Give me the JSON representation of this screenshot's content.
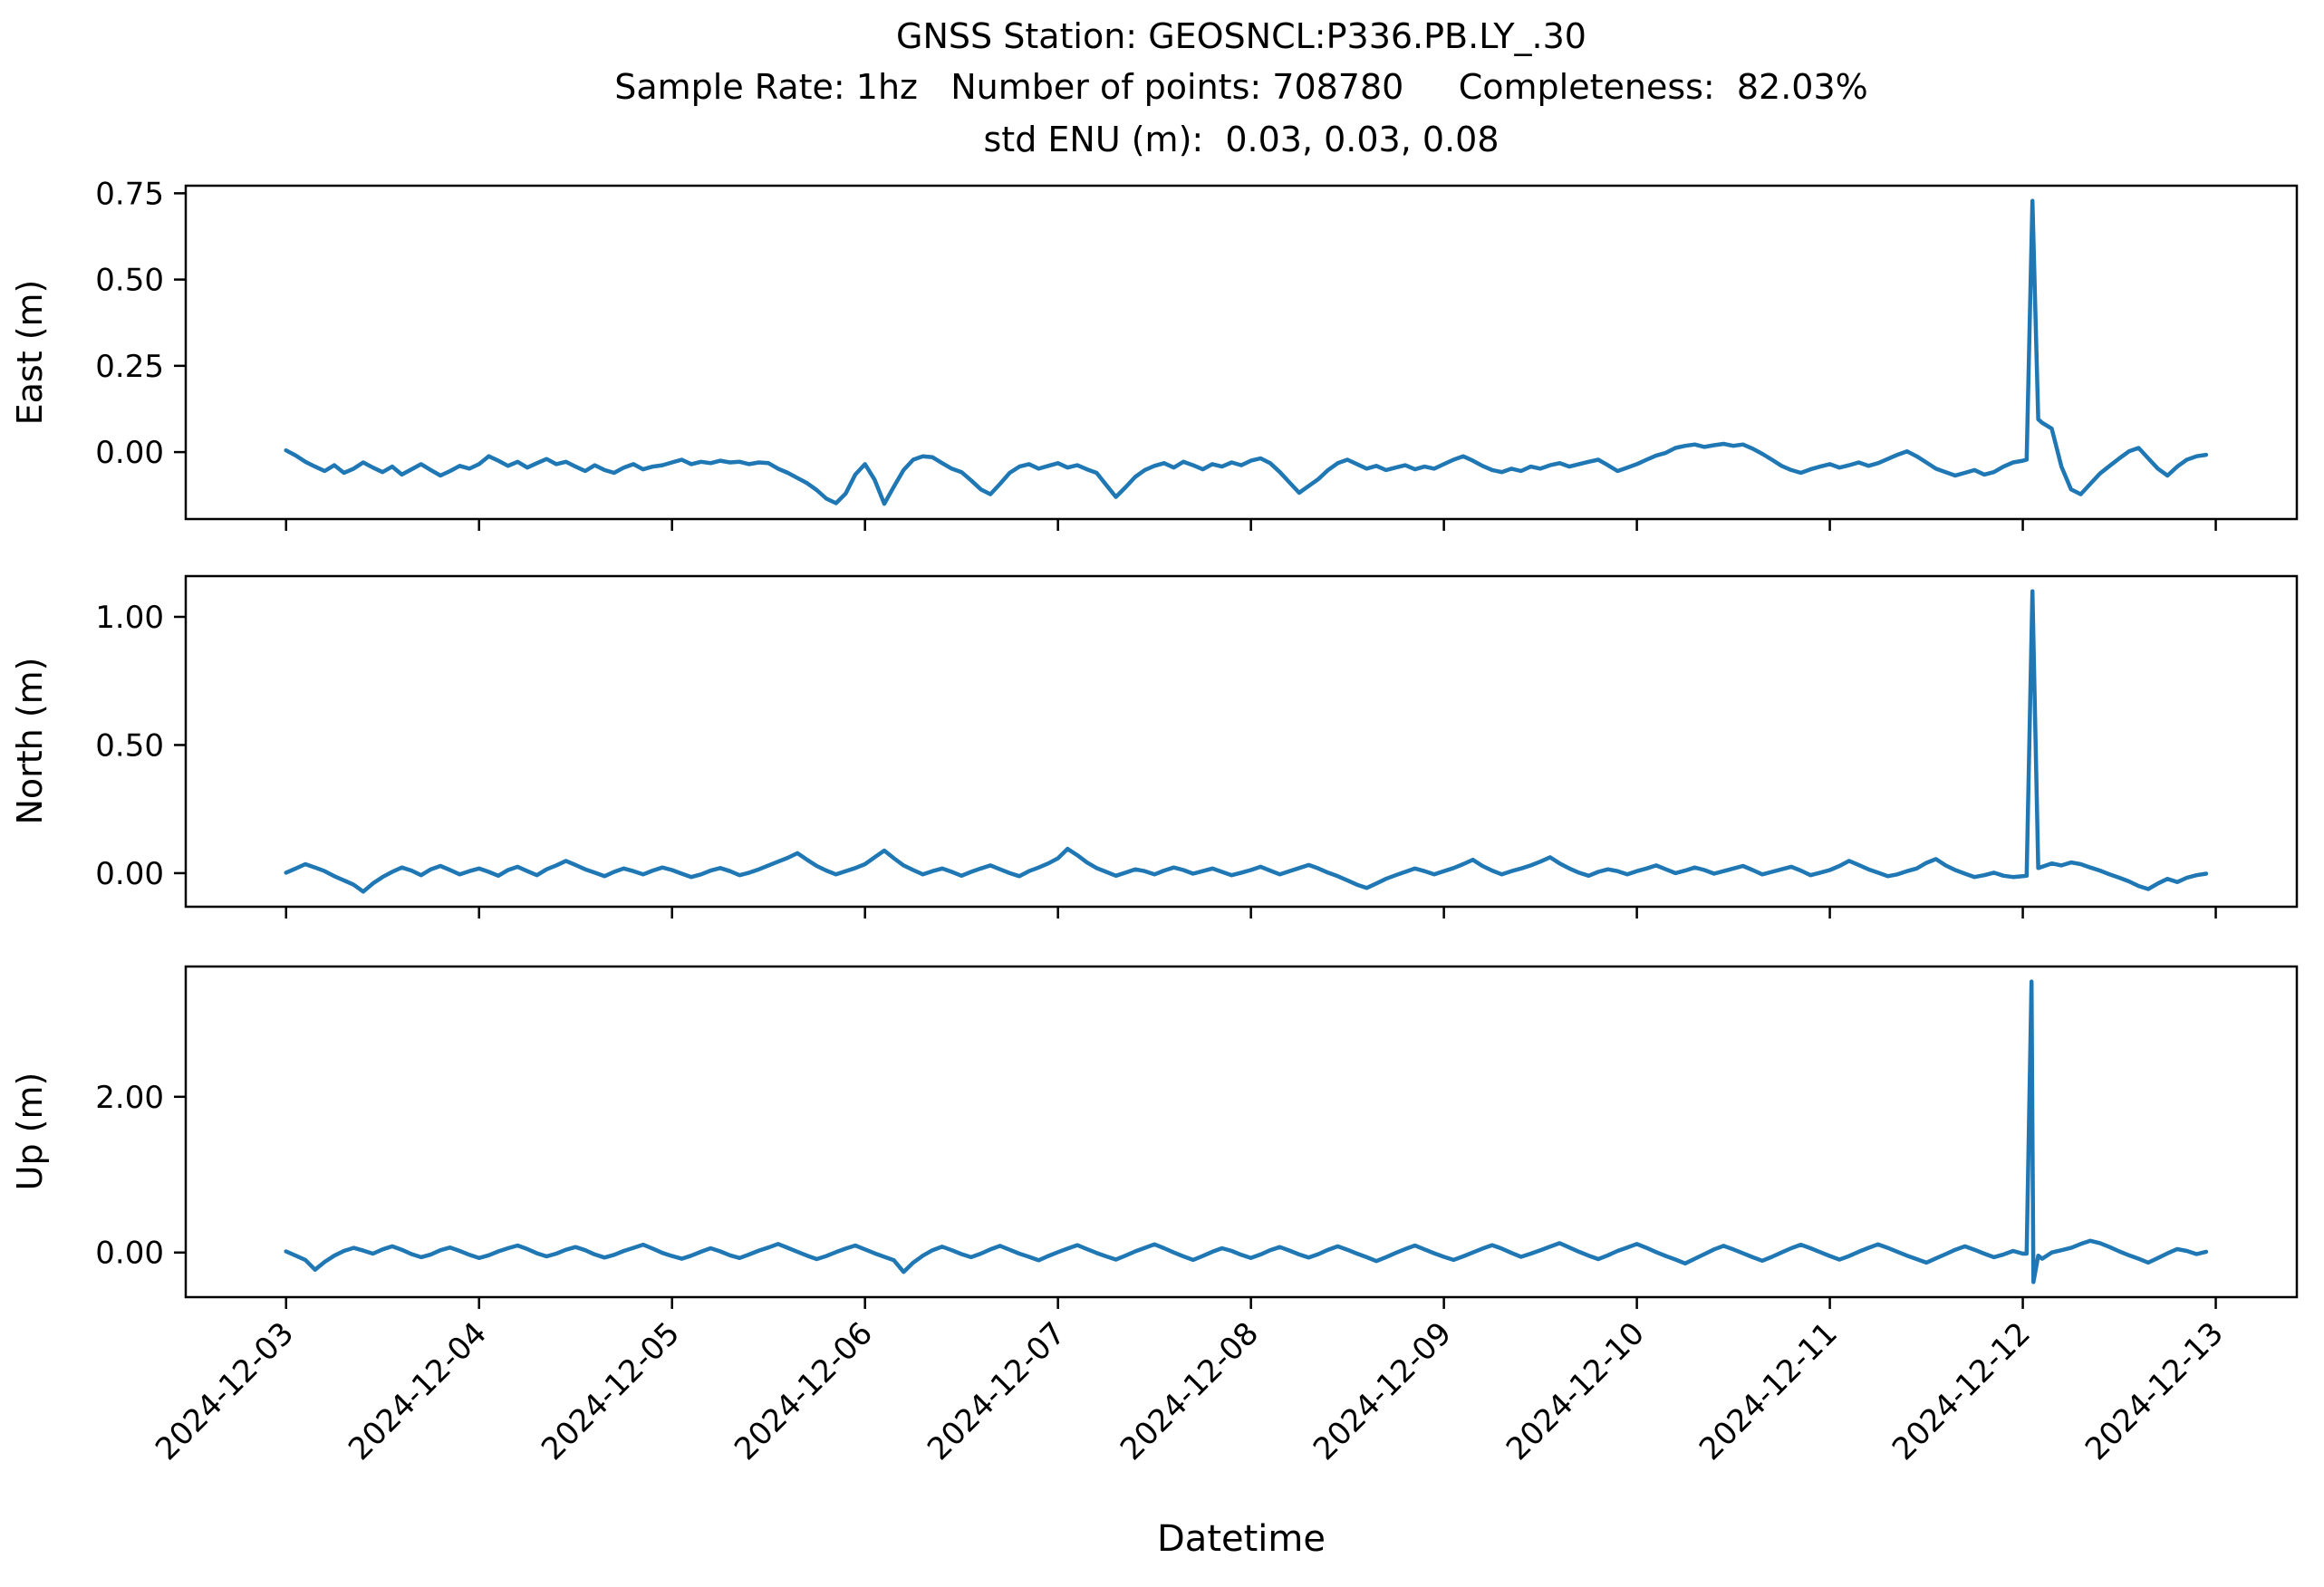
{
  "figure": {
    "title_lines": [
      "GNSS Station: GEOSNCL:P336.PB.LY_.30",
      "Sample Rate: 1hz   Number of points: 708780     Completeness:  82.03%",
      "std ENU (m):  0.03, 0.03, 0.08"
    ],
    "station": "GEOSNCL:P336.PB.LY_.30",
    "sample_rate": "1hz",
    "number_of_points": "708780",
    "completeness": "82.03%",
    "std_enu_m": [
      0.03,
      0.03,
      0.08
    ],
    "line_color": "#1f77b4",
    "spine_color": "#000000",
    "background_color": "#ffffff"
  },
  "chart_data": {
    "type": "line",
    "title": "GNSS Station: GEOSNCL:P336.PB.LY_.30",
    "subtitle": "Sample Rate: 1hz   Number of points: 708780     Completeness:  82.03%  |  std ENU (m): 0.03, 0.03, 0.08",
    "xlabel": "Datetime",
    "legend": "none",
    "grid": false,
    "x_axis": {
      "label": "Datetime",
      "tick_labels": [
        "2024-12-03",
        "2024-12-04",
        "2024-12-05",
        "2024-12-06",
        "2024-12-07",
        "2024-12-08",
        "2024-12-09",
        "2024-12-10",
        "2024-12-11",
        "2024-12-12",
        "2024-12-13"
      ],
      "tick_days": [
        0,
        1,
        2,
        3,
        4,
        5,
        6,
        7,
        8,
        9,
        10
      ],
      "xlim_days": [
        -0.52,
        10.42
      ],
      "x0_day": 0.0,
      "dx_day": 0.05
    },
    "subplots": [
      {
        "name": "East",
        "ylabel": "East (m)",
        "ytick_values": [
          0.0,
          0.25,
          0.5,
          0.75
        ],
        "ytick_labels": [
          "0.00",
          "0.25",
          "0.50",
          "0.75"
        ],
        "ylim": [
          -0.194,
          0.772
        ],
        "spike": {
          "day": 9.05,
          "peak": 0.73
        },
        "y": [
          0.005,
          -0.01,
          -0.028,
          -0.042,
          -0.055,
          -0.038,
          -0.06,
          -0.048,
          -0.03,
          -0.045,
          -0.058,
          -0.042,
          -0.065,
          -0.05,
          -0.035,
          -0.052,
          -0.068,
          -0.055,
          -0.04,
          -0.048,
          -0.035,
          -0.012,
          -0.025,
          -0.04,
          -0.028,
          -0.045,
          -0.032,
          -0.02,
          -0.035,
          -0.028,
          -0.042,
          -0.055,
          -0.038,
          -0.052,
          -0.06,
          -0.045,
          -0.035,
          -0.05,
          -0.042,
          -0.038,
          -0.03,
          -0.022,
          -0.035,
          -0.028,
          -0.032,
          -0.025,
          -0.03,
          -0.028,
          -0.035,
          -0.03,
          -0.032,
          -0.048,
          -0.06,
          -0.075,
          -0.09,
          -0.11,
          -0.135,
          -0.148,
          -0.12,
          -0.065,
          -0.035,
          -0.08,
          -0.15,
          -0.1,
          -0.052,
          -0.022,
          -0.012,
          -0.015,
          -0.032,
          -0.048,
          -0.058,
          -0.082,
          -0.108,
          -0.122,
          -0.092,
          -0.06,
          -0.042,
          -0.035,
          -0.048,
          -0.04,
          -0.032,
          -0.045,
          -0.038,
          -0.05,
          -0.06,
          -0.095,
          -0.13,
          -0.102,
          -0.072,
          -0.052,
          -0.04,
          -0.032,
          -0.045,
          -0.028,
          -0.038,
          -0.05,
          -0.035,
          -0.042,
          -0.03,
          -0.038,
          -0.025,
          -0.018,
          -0.032,
          -0.058,
          -0.088,
          -0.118,
          -0.098,
          -0.078,
          -0.052,
          -0.032,
          -0.022,
          -0.035,
          -0.048,
          -0.04,
          -0.052,
          -0.045,
          -0.038,
          -0.05,
          -0.042,
          -0.048,
          -0.035,
          -0.022,
          -0.012,
          -0.025,
          -0.04,
          -0.052,
          -0.058,
          -0.048,
          -0.055,
          -0.042,
          -0.048,
          -0.038,
          -0.032,
          -0.042,
          -0.035,
          -0.028,
          -0.022,
          -0.038,
          -0.055,
          -0.045,
          -0.035,
          -0.022,
          -0.01,
          -0.002,
          0.012,
          0.018,
          0.022,
          0.015,
          0.02,
          0.024,
          0.018,
          0.022,
          0.01,
          -0.005,
          -0.022,
          -0.04,
          -0.052,
          -0.06,
          -0.05,
          -0.042,
          -0.035,
          -0.045,
          -0.038,
          -0.03,
          -0.04,
          -0.032,
          -0.02,
          -0.008,
          0.002,
          -0.012,
          -0.03,
          -0.048,
          -0.058,
          -0.068,
          -0.06,
          -0.052,
          -0.065,
          -0.058,
          -0.042,
          -0.03,
          -0.025,
          0.728,
          0.085,
          0.068,
          -0.042,
          -0.108,
          -0.122,
          -0.092,
          -0.062,
          -0.04,
          -0.018,
          0.002,
          0.012,
          -0.018,
          -0.048,
          -0.068,
          -0.042,
          -0.022,
          -0.012,
          -0.008
        ],
        "extra_points": [
          [
            9.02,
            -0.022
          ],
          [
            9.08,
            0.095
          ]
        ]
      },
      {
        "name": "North",
        "ylabel": "North (m)",
        "ytick_values": [
          0.0,
          0.5,
          1.0
        ],
        "ytick_labels": [
          "0.00",
          "0.50",
          "1.00"
        ],
        "ylim": [
          -0.131,
          1.159
        ],
        "spike": {
          "day": 9.05,
          "peak": 1.1
        },
        "y": [
          0.002,
          0.018,
          0.035,
          0.022,
          0.008,
          -0.012,
          -0.028,
          -0.045,
          -0.072,
          -0.04,
          -0.015,
          0.005,
          0.022,
          0.01,
          -0.008,
          0.015,
          0.028,
          0.012,
          -0.005,
          0.008,
          0.018,
          0.005,
          -0.01,
          0.012,
          0.025,
          0.008,
          -0.008,
          0.015,
          0.03,
          0.048,
          0.032,
          0.015,
          0.002,
          -0.012,
          0.005,
          0.018,
          0.008,
          -0.005,
          0.01,
          0.022,
          0.012,
          -0.002,
          -0.015,
          -0.005,
          0.01,
          0.02,
          0.008,
          -0.008,
          0.002,
          0.015,
          0.03,
          0.045,
          0.06,
          0.078,
          0.052,
          0.028,
          0.01,
          -0.005,
          0.008,
          0.02,
          0.035,
          0.062,
          0.088,
          0.058,
          0.03,
          0.012,
          -0.005,
          0.008,
          0.018,
          0.005,
          -0.01,
          0.005,
          0.018,
          0.03,
          0.015,
          0.0,
          -0.012,
          0.008,
          0.022,
          0.038,
          0.058,
          0.095,
          0.07,
          0.042,
          0.02,
          0.005,
          -0.01,
          0.002,
          0.015,
          0.008,
          -0.005,
          0.01,
          0.022,
          0.012,
          -0.002,
          0.008,
          0.018,
          0.005,
          -0.008,
          0.002,
          0.012,
          0.025,
          0.01,
          -0.005,
          0.008,
          0.02,
          0.032,
          0.018,
          0.002,
          -0.012,
          -0.028,
          -0.045,
          -0.058,
          -0.04,
          -0.022,
          -0.008,
          0.005,
          0.018,
          0.008,
          -0.005,
          0.008,
          0.02,
          0.035,
          0.052,
          0.028,
          0.01,
          -0.005,
          0.008,
          0.018,
          0.03,
          0.045,
          0.062,
          0.038,
          0.018,
          0.002,
          -0.01,
          0.005,
          0.015,
          0.008,
          -0.005,
          0.008,
          0.018,
          0.03,
          0.015,
          0.0,
          0.01,
          0.022,
          0.012,
          -0.002,
          0.008,
          0.018,
          0.028,
          0.012,
          -0.005,
          0.005,
          0.015,
          0.025,
          0.01,
          -0.008,
          0.002,
          0.012,
          0.028,
          0.048,
          0.032,
          0.015,
          0.002,
          -0.012,
          -0.005,
          0.008,
          0.018,
          0.04,
          0.055,
          0.03,
          0.012,
          -0.002,
          -0.015,
          -0.008,
          0.002,
          -0.01,
          -0.015,
          -0.012,
          1.1,
          0.025,
          0.038,
          0.03,
          0.042,
          0.035,
          0.022,
          0.01,
          -0.005,
          -0.018,
          -0.032,
          -0.05,
          -0.062,
          -0.04,
          -0.022,
          -0.035,
          -0.018,
          -0.008,
          -0.002
        ],
        "extra_points": [
          [
            9.02,
            -0.01
          ],
          [
            9.08,
            0.02
          ]
        ]
      },
      {
        "name": "Up",
        "ylabel": "Up (m)",
        "ytick_values": [
          0.0,
          2.0
        ],
        "ytick_labels": [
          "0.00",
          "2.00"
        ],
        "ylim": [
          -0.573,
          3.673
        ],
        "spike": {
          "day": 9.05,
          "peak": 3.48,
          "trough": -0.38
        },
        "y": [
          0.015,
          -0.04,
          -0.095,
          -0.22,
          -0.12,
          -0.04,
          0.02,
          0.06,
          0.025,
          -0.015,
          0.04,
          0.08,
          0.035,
          -0.02,
          -0.06,
          -0.025,
          0.03,
          0.065,
          0.02,
          -0.03,
          -0.07,
          -0.035,
          0.015,
          0.055,
          0.09,
          0.045,
          -0.01,
          -0.05,
          -0.015,
          0.035,
          0.07,
          0.03,
          -0.025,
          -0.065,
          -0.03,
          0.02,
          0.06,
          0.1,
          0.05,
          -0.005,
          -0.045,
          -0.08,
          -0.04,
          0.01,
          0.055,
          0.015,
          -0.035,
          -0.07,
          -0.025,
          0.025,
          0.065,
          0.11,
          0.06,
          0.01,
          -0.04,
          -0.085,
          -0.045,
          0.005,
          0.05,
          0.09,
          0.04,
          -0.01,
          -0.055,
          -0.1,
          -0.25,
          -0.13,
          -0.04,
          0.03,
          0.075,
          0.03,
          -0.02,
          -0.06,
          -0.015,
          0.04,
          0.085,
          0.035,
          -0.015,
          -0.055,
          -0.1,
          -0.045,
          0.005,
          0.05,
          0.095,
          0.045,
          -0.005,
          -0.05,
          -0.09,
          -0.04,
          0.015,
          0.06,
          0.105,
          0.055,
          0.0,
          -0.05,
          -0.095,
          -0.045,
          0.01,
          0.055,
          0.02,
          -0.03,
          -0.07,
          -0.025,
          0.03,
          0.07,
          0.025,
          -0.025,
          -0.065,
          -0.02,
          0.035,
          0.08,
          0.035,
          -0.015,
          -0.06,
          -0.11,
          -0.06,
          -0.005,
          0.045,
          0.09,
          0.04,
          -0.01,
          -0.055,
          -0.095,
          -0.05,
          0.0,
          0.05,
          0.095,
          0.05,
          -0.005,
          -0.055,
          -0.015,
          0.03,
          0.075,
          0.12,
          0.065,
          0.01,
          -0.04,
          -0.085,
          -0.035,
          0.02,
          0.065,
          0.11,
          0.06,
          0.005,
          -0.045,
          -0.09,
          -0.14,
          -0.08,
          -0.02,
          0.04,
          0.085,
          0.04,
          -0.01,
          -0.06,
          -0.105,
          -0.055,
          0.0,
          0.055,
          0.1,
          0.055,
          0.005,
          -0.045,
          -0.09,
          -0.045,
          0.01,
          0.06,
          0.105,
          0.06,
          0.01,
          -0.04,
          -0.085,
          -0.13,
          -0.075,
          -0.02,
          0.035,
          0.08,
          0.035,
          -0.015,
          -0.06,
          -0.025,
          0.02,
          -0.015,
          1.55,
          -0.08,
          0.0,
          0.03,
          0.06,
          0.11,
          0.15,
          0.12,
          0.07,
          0.015,
          -0.035,
          -0.08,
          -0.13,
          -0.07,
          -0.01,
          0.045,
          0.02,
          -0.02,
          0.01
        ],
        "extra_points": [
          [
            9.02,
            -0.015
          ],
          [
            9.045,
            3.48
          ],
          [
            9.055,
            -0.38
          ],
          [
            9.08,
            -0.04
          ]
        ]
      }
    ]
  }
}
